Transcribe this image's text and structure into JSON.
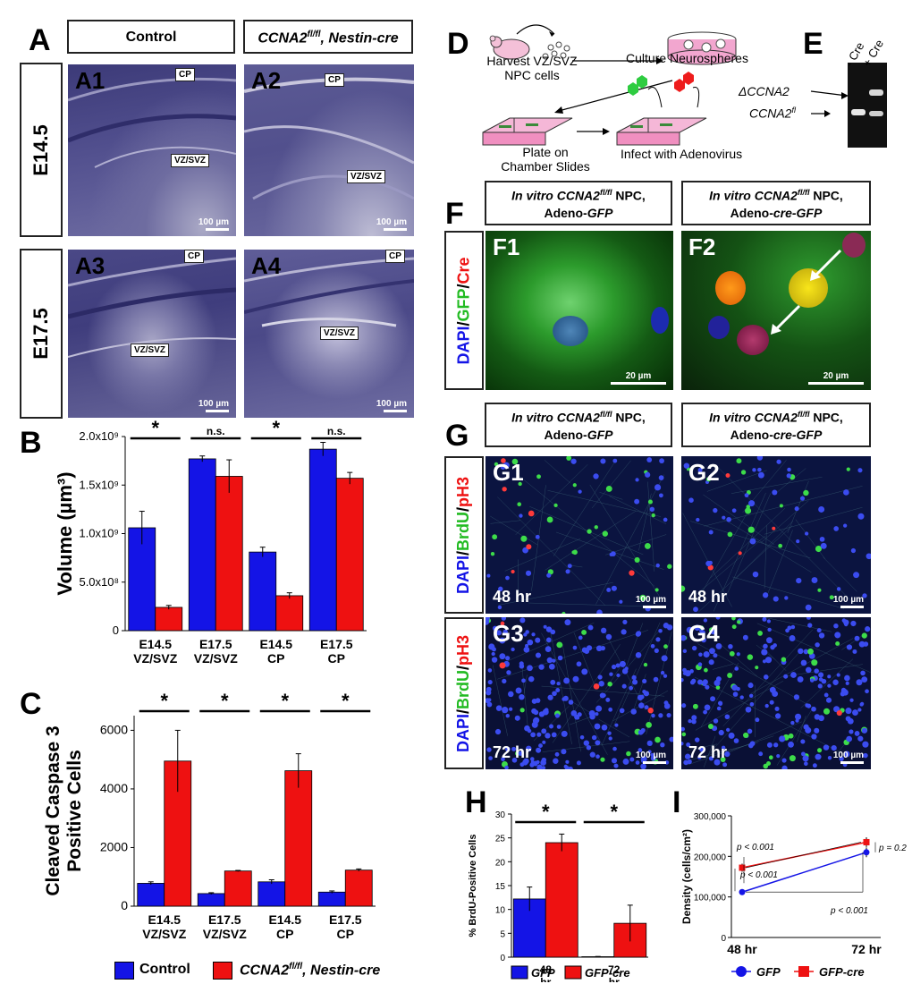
{
  "panels": {
    "A": "A",
    "B": "B",
    "C": "C",
    "D": "D",
    "E": "E",
    "F": "F",
    "G": "G",
    "H": "H",
    "I": "I"
  },
  "panel_a": {
    "col_control": "Control",
    "col_mutant_gene": "CCNA2",
    "col_mutant_sup": "fl/fl",
    "col_mutant_rest": ", Nestin-cre",
    "row_e145": "E14.5",
    "row_e175": "E17.5",
    "tiles": [
      {
        "label": "A1",
        "cp": "CP",
        "vz": "VZ/SVZ",
        "scale": "100 µm"
      },
      {
        "label": "A2",
        "cp": "CP",
        "vz": "VZ/SVZ",
        "scale": "100 µm"
      },
      {
        "label": "A3",
        "cp": "CP",
        "vz": "VZ/SVZ",
        "scale": "100 µm"
      },
      {
        "label": "A4",
        "cp": "CP",
        "vz": "VZ/SVZ",
        "scale": "100 µm"
      }
    ]
  },
  "panel_d": {
    "harvest": "Harvest VZ/SVZ",
    "npc": "NPC cells",
    "culture": "Culture Neurospheres",
    "plate1": "Plate on",
    "plate2": "Chamber Slides",
    "infect": "Infect with Adenovirus"
  },
  "panel_e": {
    "minus_cre": "- Cre",
    "plus_cre": "+ Cre",
    "band_delta": "ΔCCNA2",
    "band_fl_gene": "CCNA2",
    "band_fl_sup": "fl"
  },
  "panel_f": {
    "hdr_left_1": "In vitro CCNA2",
    "hdr_sup": "fl/fl",
    "hdr_npc": " NPC,",
    "hdr_left_2a": "Adeno-",
    "hdr_left_2b": "GFP",
    "hdr_right_2b": "cre-GFP",
    "stain_dapi": "DAPI",
    "stain_mid": "GFP",
    "stain_last": "Cre",
    "slash": "/",
    "tiles": [
      {
        "label": "F1",
        "scale": "20 µm"
      },
      {
        "label": "F2",
        "scale": "20 µm"
      }
    ]
  },
  "panel_g": {
    "stain_dapi": "DAPI",
    "stain_mid": "BrdU",
    "stain_last": "pH3",
    "slash": "/",
    "tiles": [
      {
        "label": "G1",
        "time": "48 hr",
        "scale": "100 µm"
      },
      {
        "label": "G2",
        "time": "48 hr",
        "scale": "100 µm"
      },
      {
        "label": "G3",
        "time": "72 hr",
        "scale": "100 µm"
      },
      {
        "label": "G4",
        "time": "72 hr",
        "scale": "100 µm"
      }
    ]
  },
  "colors": {
    "control": "#1414e6",
    "mutant": "#ee1111"
  },
  "legend_bc": {
    "control": "Control",
    "mutant_gene": "CCNA2",
    "mutant_sup": "fl/fl",
    "mutant_rest": ", Nestin-cre"
  },
  "chart_data": [
    {
      "id": "B",
      "type": "bar",
      "ylabel": "Volume (µm³)",
      "ylim": [
        0,
        2000000000
      ],
      "yticks": [
        "0",
        "5.0x10⁸",
        "1.0x10⁹",
        "1.5x10⁹",
        "2.0x10⁹"
      ],
      "categories": [
        "E14.5 VZ/SVZ",
        "E17.5 VZ/SVZ",
        "E14.5 CP",
        "E17.5 CP"
      ],
      "series": [
        {
          "name": "Control",
          "values": [
            1060000000,
            1770000000,
            810000000,
            1870000000
          ],
          "errors": [
            170000000,
            30000000,
            50000000,
            70000000
          ]
        },
        {
          "name": "CCNA2fl/fl, Nestin-cre",
          "values": [
            240000000,
            1590000000,
            360000000,
            1570000000
          ],
          "errors": [
            20000000,
            170000000,
            30000000,
            60000000
          ]
        }
      ],
      "significance": [
        "*",
        "n.s.",
        "*",
        "n.s."
      ]
    },
    {
      "id": "C",
      "type": "bar",
      "ylabel": "Cleaved Caspase 3 Positive Cells",
      "ylim": [
        0,
        6500
      ],
      "yticks": [
        "0",
        "2000",
        "4000",
        "6000"
      ],
      "categories": [
        "E14.5 VZ/SVZ",
        "E17.5 VZ/SVZ",
        "E14.5 CP",
        "E17.5 CP"
      ],
      "series": [
        {
          "name": "Control",
          "values": [
            780,
            430,
            830,
            480
          ],
          "errors": [
            50,
            30,
            70,
            40
          ]
        },
        {
          "name": "CCNA2fl/fl, Nestin-cre",
          "values": [
            4950,
            1200,
            4620,
            1230
          ],
          "errors": [
            1050,
            20,
            580,
            40
          ]
        }
      ],
      "significance": [
        "*",
        "*",
        "*",
        "*"
      ]
    },
    {
      "id": "H",
      "type": "bar",
      "ylabel": "% BrdU-Positive Cells",
      "ylim": [
        0,
        30
      ],
      "yticks": [
        "0",
        "5",
        "10",
        "15",
        "20",
        "25",
        "30"
      ],
      "categories": [
        "48 hr",
        "72 hr"
      ],
      "series": [
        {
          "name": "GFP",
          "values": [
            12.2,
            0.1
          ],
          "errors": [
            2.5,
            0.05
          ]
        },
        {
          "name": "GFP-cre",
          "values": [
            24,
            7.1
          ],
          "errors": [
            1.8,
            3.8
          ]
        }
      ],
      "significance": [
        "*",
        "*"
      ]
    },
    {
      "id": "I",
      "type": "line",
      "ylabel": "Density (cells/cm²)",
      "ylim": [
        0,
        300000
      ],
      "yticks": [
        "0",
        "100,000",
        "200,000",
        "300,000"
      ],
      "x": [
        "48 hr",
        "72 hr"
      ],
      "series": [
        {
          "name": "GFP",
          "values": [
            112000,
            210000
          ],
          "errors": [
            5000,
            12000
          ]
        },
        {
          "name": "GFP-cre",
          "values": [
            172000,
            235000
          ],
          "errors": [
            10000,
            12000
          ]
        }
      ],
      "annotations": [
        "p < 0.001",
        "p < 0.001",
        "p < 0.001",
        "p = 0.2"
      ]
    }
  ]
}
